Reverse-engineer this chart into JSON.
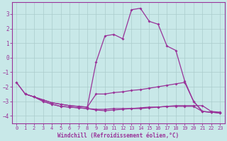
{
  "xlabel": "Windchill (Refroidissement éolien,°C)",
  "xlim": [
    -0.5,
    23.5
  ],
  "ylim": [
    -4.5,
    3.8
  ],
  "yticks": [
    -4,
    -3,
    -2,
    -1,
    0,
    1,
    2,
    3
  ],
  "xticks": [
    0,
    1,
    2,
    3,
    4,
    5,
    6,
    7,
    8,
    9,
    10,
    11,
    12,
    13,
    14,
    15,
    16,
    17,
    18,
    19,
    20,
    21,
    22,
    23
  ],
  "bg_color": "#c8e8e8",
  "grid_color": "#aacccc",
  "line_color": "#993399",
  "line1_x": [
    0,
    1,
    2,
    3,
    4,
    5,
    6,
    7,
    8,
    9,
    10,
    11,
    12,
    13,
    14,
    15,
    16,
    17,
    18,
    19,
    20,
    21,
    22,
    23
  ],
  "line1_y": [
    -1.7,
    -2.5,
    -2.7,
    -2.9,
    -3.1,
    -3.2,
    -3.3,
    -3.35,
    -3.4,
    -0.3,
    1.5,
    1.6,
    1.3,
    3.3,
    3.4,
    2.5,
    2.3,
    0.8,
    0.5,
    -1.6,
    -3.0,
    -3.7,
    -3.75,
    -3.8
  ],
  "line2_x": [
    0,
    1,
    2,
    3,
    4,
    5,
    6,
    7,
    8,
    9,
    10,
    11,
    12,
    13,
    14,
    15,
    16,
    17,
    18,
    19,
    20,
    21,
    22,
    23
  ],
  "line2_y": [
    -1.7,
    -2.5,
    -2.7,
    -2.9,
    -3.1,
    -3.2,
    -3.3,
    -3.35,
    -3.4,
    -2.5,
    -2.5,
    -2.4,
    -2.35,
    -2.25,
    -2.2,
    -2.1,
    -2.0,
    -1.9,
    -1.8,
    -1.7,
    -3.0,
    -3.7,
    -3.75,
    -3.8
  ],
  "line3_x": [
    1,
    2,
    3,
    4,
    5,
    6,
    7,
    8,
    9,
    10,
    11,
    12,
    13,
    14,
    15,
    16,
    17,
    18,
    19,
    20,
    21,
    22,
    23
  ],
  "line3_y": [
    -2.5,
    -2.7,
    -3.0,
    -3.2,
    -3.35,
    -3.4,
    -3.45,
    -3.5,
    -3.55,
    -3.55,
    -3.5,
    -3.5,
    -3.5,
    -3.45,
    -3.4,
    -3.4,
    -3.35,
    -3.35,
    -3.35,
    -3.35,
    -3.7,
    -3.75,
    -3.8
  ],
  "line4_x": [
    2,
    3,
    4,
    5,
    6,
    7,
    8,
    9,
    10,
    11,
    12,
    13,
    14,
    15,
    16,
    17,
    18,
    19,
    20,
    21,
    22,
    23
  ],
  "line4_y": [
    -2.7,
    -3.0,
    -3.2,
    -3.35,
    -3.4,
    -3.45,
    -3.5,
    -3.6,
    -3.65,
    -3.6,
    -3.55,
    -3.5,
    -3.5,
    -3.45,
    -3.4,
    -3.35,
    -3.3,
    -3.3,
    -3.3,
    -3.3,
    -3.7,
    -3.75
  ]
}
